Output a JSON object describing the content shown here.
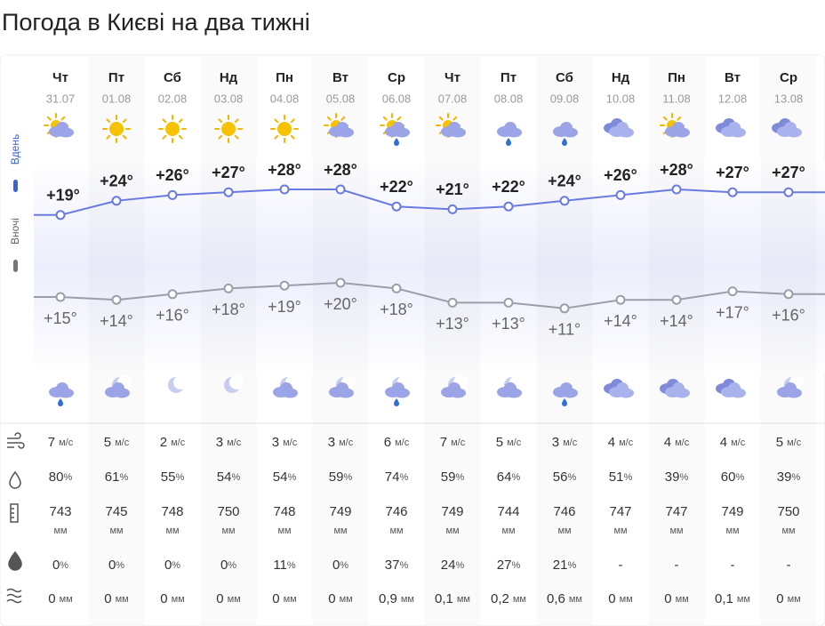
{
  "title": "Погода в Києві на два тижні",
  "side_labels": {
    "day": "Вдень",
    "night": "Вночі"
  },
  "units": {
    "wind": "м/с",
    "humidity": "%",
    "pressure": "мм",
    "precip_prob": "%",
    "precip": "мм"
  },
  "days": [
    {
      "name": "Чт",
      "date": "31.07",
      "weekend": false,
      "icon_day": "partly",
      "icon_night": "rain",
      "day": 19,
      "day_label": "+19°",
      "night": 15,
      "night_label": "+15°",
      "wind": 7,
      "humidity": 80,
      "pressure": 743,
      "precip_prob": 0,
      "precip": "0"
    },
    {
      "name": "Пт",
      "date": "01.08",
      "weekend": false,
      "icon_day": "sun",
      "icon_night": "moon-cloud",
      "day": 24,
      "day_label": "+24°",
      "night": 14,
      "night_label": "+14°",
      "wind": 5,
      "humidity": 61,
      "pressure": 745,
      "precip_prob": 0,
      "precip": "0"
    },
    {
      "name": "Сб",
      "date": "02.08",
      "weekend": true,
      "icon_day": "sun",
      "icon_night": "moon",
      "day": 26,
      "day_label": "+26°",
      "night": 16,
      "night_label": "+16°",
      "wind": 2,
      "humidity": 55,
      "pressure": 748,
      "precip_prob": 0,
      "precip": "0"
    },
    {
      "name": "Нд",
      "date": "03.08",
      "weekend": true,
      "icon_day": "sun",
      "icon_night": "moon",
      "day": 27,
      "day_label": "+27°",
      "night": 18,
      "night_label": "+18°",
      "wind": 3,
      "humidity": 54,
      "pressure": 750,
      "precip_prob": 0,
      "precip": "0"
    },
    {
      "name": "Пн",
      "date": "04.08",
      "weekend": false,
      "icon_day": "sun",
      "icon_night": "moon-cloud",
      "day": 28,
      "day_label": "+28°",
      "night": 19,
      "night_label": "+19°",
      "wind": 3,
      "humidity": 54,
      "pressure": 748,
      "precip_prob": 11,
      "precip": "0"
    },
    {
      "name": "Вт",
      "date": "05.08",
      "weekend": false,
      "icon_day": "partly",
      "icon_night": "moon-cloud",
      "day": 28,
      "day_label": "+28°",
      "night": 20,
      "night_label": "+20°",
      "wind": 3,
      "humidity": 59,
      "pressure": 749,
      "precip_prob": 0,
      "precip": "0"
    },
    {
      "name": "Ср",
      "date": "06.08",
      "weekend": false,
      "icon_day": "partly-rain",
      "icon_night": "moon-cloud-rain",
      "day": 22,
      "day_label": "+22°",
      "night": 18,
      "night_label": "+18°",
      "wind": 6,
      "humidity": 74,
      "pressure": 746,
      "precip_prob": 37,
      "precip": "0,9"
    },
    {
      "name": "Чт",
      "date": "07.08",
      "weekend": false,
      "icon_day": "partly",
      "icon_night": "moon-cloud",
      "day": 21,
      "day_label": "+21°",
      "night": 13,
      "night_label": "+13°",
      "wind": 7,
      "humidity": 59,
      "pressure": 749,
      "precip_prob": 24,
      "precip": "0,1"
    },
    {
      "name": "Пт",
      "date": "08.08",
      "weekend": false,
      "icon_day": "rain",
      "icon_night": "moon-cloud",
      "day": 22,
      "day_label": "+22°",
      "night": 13,
      "night_label": "+13°",
      "wind": 5,
      "humidity": 64,
      "pressure": 744,
      "precip_prob": 27,
      "precip": "0,2"
    },
    {
      "name": "Сб",
      "date": "09.08",
      "weekend": true,
      "icon_day": "rain",
      "icon_night": "rain",
      "day": 24,
      "day_label": "+24°",
      "night": 11,
      "night_label": "+11°",
      "wind": 3,
      "humidity": 56,
      "pressure": 746,
      "precip_prob": 21,
      "precip": "0,6"
    },
    {
      "name": "Нд",
      "date": "10.08",
      "weekend": true,
      "icon_day": "cloudy",
      "icon_night": "cloudy",
      "day": 26,
      "day_label": "+26°",
      "night": 14,
      "night_label": "+14°",
      "wind": 4,
      "humidity": 51,
      "pressure": 747,
      "precip_prob": "-",
      "precip": "0"
    },
    {
      "name": "Пн",
      "date": "11.08",
      "weekend": false,
      "icon_day": "partly",
      "icon_night": "cloudy",
      "day": 28,
      "day_label": "+28°",
      "night": 14,
      "night_label": "+14°",
      "wind": 4,
      "humidity": 39,
      "pressure": 747,
      "precip_prob": "-",
      "precip": "0"
    },
    {
      "name": "Вт",
      "date": "12.08",
      "weekend": false,
      "icon_day": "cloudy",
      "icon_night": "cloudy",
      "day": 27,
      "day_label": "+27°",
      "night": 17,
      "night_label": "+17°",
      "wind": 4,
      "humidity": 60,
      "pressure": 749,
      "precip_prob": "-",
      "precip": "0,1"
    },
    {
      "name": "Ср",
      "date": "13.08",
      "weekend": false,
      "icon_day": "cloudy",
      "icon_night": "moon-cloud",
      "day": 27,
      "day_label": "+27°",
      "night": 16,
      "night_label": "+16°",
      "wind": 5,
      "humidity": 39,
      "pressure": 750,
      "precip_prob": "-",
      "precip": "0"
    }
  ]
}
